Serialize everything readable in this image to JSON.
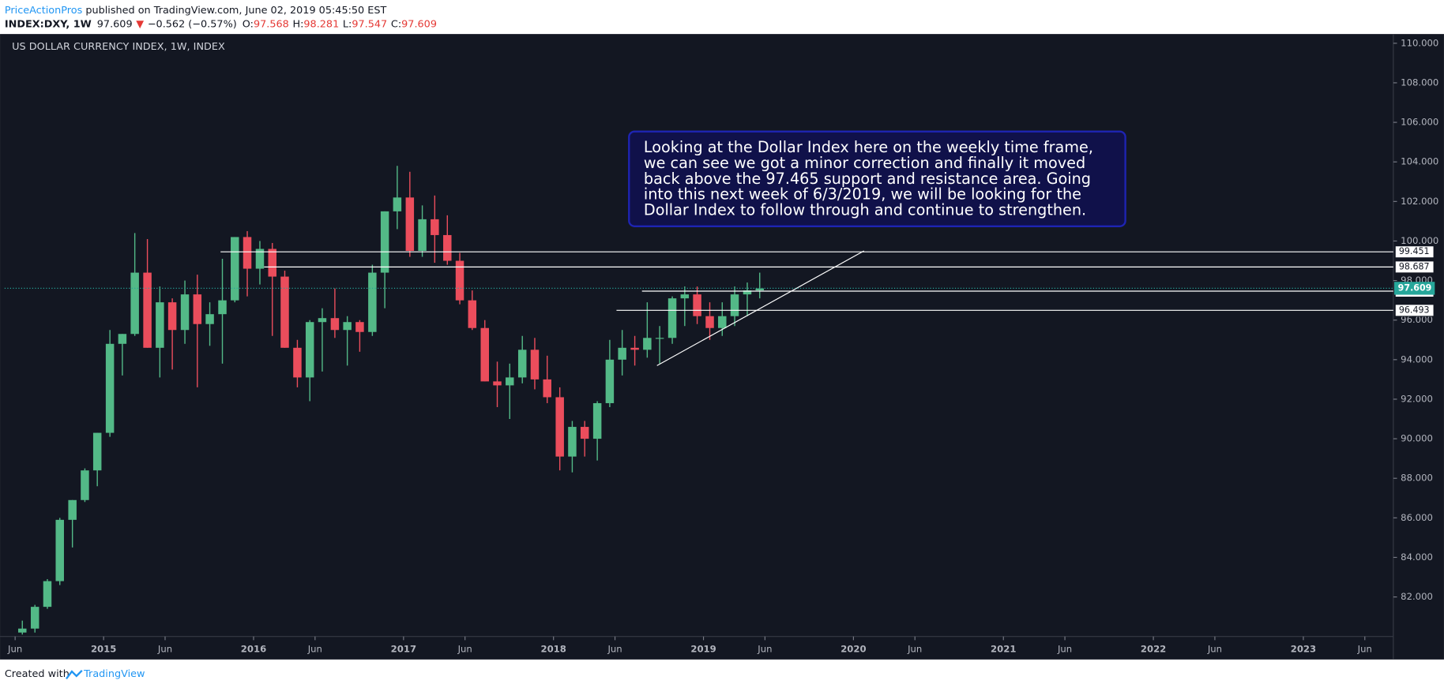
{
  "header": {
    "author": "PriceActionPros",
    "published": " published on TradingView.com, June 02, 2019 05:45:50 EST",
    "symbol": "INDEX:DXY, 1W",
    "last": "97.609",
    "arrow": "▼",
    "change": "−0.562 (−0.57%)",
    "o_label": "O:",
    "o": "97.568",
    "h_label": "H:",
    "h": "98.281",
    "l_label": "L:",
    "l": "97.547",
    "c_label": "C:",
    "c": "97.609"
  },
  "footer": {
    "created": "Created with",
    "brand": "TradingView"
  },
  "chart_data": {
    "type": "candlestick",
    "title": "US DOLLAR CURRENCY INDEX, 1W, INDEX",
    "up_color": "#53b987",
    "down_color": "#eb4d5c",
    "x": [
      2014.458,
      2014.542,
      2014.625,
      2014.708,
      2014.792,
      2014.875,
      2014.958,
      2015.042,
      2015.125,
      2015.208,
      2015.292,
      2015.375,
      2015.458,
      2015.542,
      2015.625,
      2015.708,
      2015.792,
      2015.875,
      2015.958,
      2016.042,
      2016.125,
      2016.208,
      2016.292,
      2016.375,
      2016.458,
      2016.542,
      2016.625,
      2016.708,
      2016.792,
      2016.875,
      2016.958,
      2017.042,
      2017.125,
      2017.208,
      2017.292,
      2017.375,
      2017.458,
      2017.542,
      2017.625,
      2017.708,
      2017.792,
      2017.875,
      2017.958,
      2018.042,
      2018.125,
      2018.208,
      2018.292,
      2018.375,
      2018.458,
      2018.542,
      2018.625,
      2018.708,
      2018.792,
      2018.875,
      2018.958,
      2019.042,
      2019.125,
      2019.208,
      2019.292,
      2019.375
    ],
    "open": [
      80.2,
      80.4,
      81.5,
      82.8,
      85.9,
      86.9,
      88.4,
      90.3,
      94.8,
      95.3,
      98.4,
      94.6,
      96.9,
      95.5,
      97.3,
      95.8,
      96.3,
      97.0,
      100.2,
      98.6,
      99.6,
      98.2,
      94.6,
      93.1,
      95.9,
      96.1,
      95.5,
      95.9,
      95.4,
      98.4,
      101.5,
      102.2,
      99.5,
      101.1,
      100.3,
      99.0,
      97.0,
      95.6,
      92.9,
      92.7,
      93.1,
      94.5,
      93.0,
      92.1,
      89.1,
      90.6,
      90.0,
      91.8,
      94.0,
      94.6,
      94.5,
      95.1,
      95.1,
      97.1,
      97.3,
      96.2,
      95.6,
      96.2,
      97.3,
      97.5
    ],
    "high": [
      80.8,
      81.6,
      82.9,
      86.0,
      86.9,
      88.5,
      90.3,
      95.5,
      95.3,
      100.4,
      100.1,
      97.7,
      97.1,
      98.0,
      98.3,
      96.9,
      99.1,
      100.2,
      100.5,
      100.0,
      99.9,
      98.5,
      95.0,
      96.0,
      96.6,
      97.6,
      96.2,
      96.0,
      98.8,
      101.5,
      103.8,
      103.5,
      101.8,
      102.3,
      101.3,
      99.4,
      97.5,
      96.0,
      93.9,
      93.8,
      95.2,
      95.1,
      94.2,
      92.6,
      90.9,
      90.9,
      91.9,
      95.0,
      95.5,
      95.2,
      96.9,
      95.7,
      97.2,
      97.7,
      97.7,
      96.9,
      96.9,
      97.7,
      97.9,
      98.4
    ],
    "low": [
      80.1,
      80.2,
      81.4,
      82.6,
      84.5,
      86.8,
      87.6,
      90.1,
      93.2,
      95.2,
      94.6,
      93.1,
      93.5,
      94.8,
      92.6,
      94.7,
      93.8,
      96.9,
      97.2,
      97.8,
      95.2,
      94.6,
      92.6,
      91.9,
      93.4,
      95.1,
      93.7,
      94.4,
      95.2,
      96.6,
      100.6,
      99.2,
      99.2,
      98.9,
      98.8,
      96.8,
      95.5,
      92.9,
      91.6,
      91.0,
      92.8,
      92.5,
      91.8,
      88.4,
      88.3,
      89.1,
      88.9,
      91.6,
      93.2,
      93.7,
      94.1,
      93.8,
      94.8,
      95.7,
      95.8,
      95.0,
      95.2,
      95.7,
      96.2,
      97.1
    ],
    "close": [
      80.4,
      81.5,
      82.8,
      85.9,
      86.9,
      88.4,
      90.3,
      94.8,
      95.3,
      98.4,
      94.6,
      96.9,
      95.5,
      97.3,
      95.8,
      96.3,
      97.0,
      100.2,
      98.6,
      99.6,
      98.2,
      94.6,
      93.1,
      95.9,
      96.1,
      95.5,
      95.9,
      95.4,
      98.4,
      101.5,
      102.2,
      99.5,
      101.1,
      100.3,
      99.0,
      97.0,
      95.6,
      92.9,
      92.7,
      93.1,
      94.5,
      93.0,
      92.1,
      89.1,
      90.6,
      90.0,
      91.8,
      94.0,
      94.6,
      94.5,
      95.1,
      95.1,
      97.1,
      97.3,
      96.2,
      95.6,
      96.2,
      97.3,
      97.5,
      97.6
    ],
    "xlim": [
      2014.34,
      2023.6
    ],
    "xticks": [
      {
        "value": 2014.41,
        "label": "Jun"
      },
      {
        "value": 2015,
        "label": "2015"
      },
      {
        "value": 2015.41,
        "label": "Jun"
      },
      {
        "value": 2016,
        "label": "2016"
      },
      {
        "value": 2016.41,
        "label": "Jun"
      },
      {
        "value": 2017,
        "label": "2017"
      },
      {
        "value": 2017.41,
        "label": "Jun"
      },
      {
        "value": 2018,
        "label": "2018"
      },
      {
        "value": 2018.41,
        "label": "Jun"
      },
      {
        "value": 2019,
        "label": "2019"
      },
      {
        "value": 2019.41,
        "label": "Jun"
      },
      {
        "value": 2020,
        "label": "2020"
      },
      {
        "value": 2020.41,
        "label": "Jun"
      },
      {
        "value": 2021,
        "label": "2021"
      },
      {
        "value": 2021.41,
        "label": "Jun"
      },
      {
        "value": 2022,
        "label": "2022"
      },
      {
        "value": 2022.41,
        "label": "Jun"
      },
      {
        "value": 2023,
        "label": "2023"
      },
      {
        "value": 2023.41,
        "label": "Jun"
      }
    ],
    "ylim": [
      80,
      110.42
    ],
    "yticks": [
      {
        "value": 82,
        "label": "82.000"
      },
      {
        "value": 84,
        "label": "84.000"
      },
      {
        "value": 86,
        "label": "86.000"
      },
      {
        "value": 88,
        "label": "88.000"
      },
      {
        "value": 90,
        "label": "90.000"
      },
      {
        "value": 92,
        "label": "92.000"
      },
      {
        "value": 94,
        "label": "94.000"
      },
      {
        "value": 96,
        "label": "96.000"
      },
      {
        "value": 98,
        "label": "98.000"
      },
      {
        "value": 100,
        "label": "100.000"
      },
      {
        "value": 102,
        "label": "102.000"
      },
      {
        "value": 104,
        "label": "104.000"
      },
      {
        "value": 106,
        "label": "106.000"
      },
      {
        "value": 108,
        "label": "108.000"
      },
      {
        "value": 110,
        "label": "110.000"
      }
    ],
    "last_price": 97.609,
    "last_color": "#26a69a",
    "levels": [
      {
        "value": 99.451,
        "start": 2015.78
      },
      {
        "value": 98.687,
        "start": 2016.07
      },
      {
        "value": 97.465,
        "start": 2018.59
      },
      {
        "value": 96.493,
        "start": 2018.42
      }
    ],
    "trendline": {
      "x": [
        2018.69,
        2020.07
      ],
      "y": [
        93.7,
        99.5
      ]
    },
    "annotation": [
      "Looking at the Dollar Index here on the weekly time frame,",
      "we can see we got a minor correction and finally it moved",
      "back above the 97.465 support and resistance area. Going",
      "into this next week of 6/3/2019, we will be looking for the",
      "Dollar Index to follow through and continue to strengthen."
    ]
  }
}
